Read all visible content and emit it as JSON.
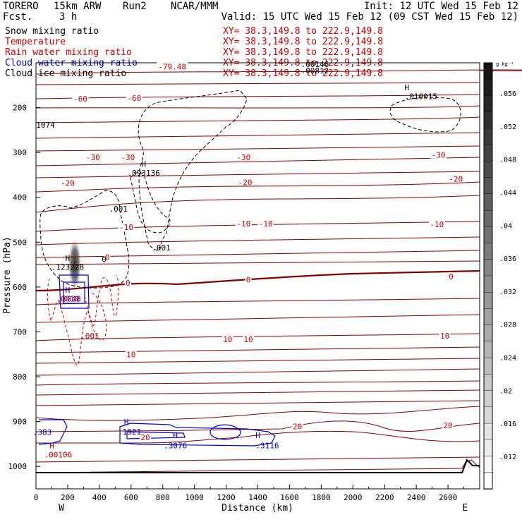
{
  "header": {
    "model": "TORERO",
    "resolution": "15km ARW",
    "run": "Run2",
    "org": "NCAR/MMM",
    "init": "Init: 12 UTC Wed 15 Feb 12",
    "fcst_label": "Fcst.",
    "fcst_value": "3 h",
    "valid": "Valid: 15 UTC Wed 15 Feb 12 (09 CST Wed 15 Feb 12)"
  },
  "legend": [
    {
      "name": "Snow mixing ratio",
      "color": "#000000",
      "xy": "XY=  38.3,149.8 to 222.9,149.8"
    },
    {
      "name": "Temperature",
      "color": "#cc0000",
      "xy": "XY=  38.3,149.8 to 222.9,149.8"
    },
    {
      "name": "Rain water mixing ratio",
      "color": "#cc0000",
      "xy": "XY=  38.3,149.8 to 222.9,149.8"
    },
    {
      "name": "Cloud water mixing ratio",
      "color": "#0000cc",
      "xy": "XY=  38.3,149.8 to 222.9,149.8"
    },
    {
      "name": "Cloud ice mixing ratio",
      "color": "#000000",
      "xy": "XY=  38.3,149.8 to 222.9,149.8"
    }
  ],
  "colorbar": {
    "unit": "g kg⁻¹",
    "ticks": [
      ".056",
      ".052",
      ".048",
      ".044",
      ".04",
      ".036",
      ".032",
      ".028",
      ".024",
      ".02",
      ".016",
      ".012"
    ]
  },
  "chart_data": {
    "type": "contour",
    "xlabel": "Distance (km)",
    "ylabel": "Pressure (hPa)",
    "xlim": [
      0,
      2800
    ],
    "ylim": [
      1050,
      100
    ],
    "x_ticks": [
      0,
      200,
      400,
      600,
      800,
      1000,
      1200,
      1400,
      1600,
      1800,
      2000,
      2200,
      2400,
      2600
    ],
    "y_ticks": [
      200,
      300,
      400,
      500,
      600,
      700,
      800,
      900,
      1000
    ],
    "endpoint_west": "W",
    "endpoint_east": "E",
    "temperature_labels": [
      {
        "text": "-79.48",
        "x": 860,
        "p": 110,
        "color": "#cc0000"
      },
      {
        "text": "-60",
        "x": 280,
        "p": 182,
        "color": "#cc0000"
      },
      {
        "text": "-60",
        "x": 620,
        "p": 180,
        "color": "#cc0000"
      },
      {
        "text": "-30",
        "x": 360,
        "p": 312,
        "color": "#cc0000"
      },
      {
        "text": "-30",
        "x": 580,
        "p": 312,
        "color": "#cc0000"
      },
      {
        "text": "-30",
        "x": 1310,
        "p": 312,
        "color": "#cc0000"
      },
      {
        "text": "-30",
        "x": 2540,
        "p": 307,
        "color": "#cc0000"
      },
      {
        "text": "-20",
        "x": 200,
        "p": 370,
        "color": "#cc0000"
      },
      {
        "text": "-20",
        "x": 1320,
        "p": 368,
        "color": "#cc0000"
      },
      {
        "text": "-20",
        "x": 2650,
        "p": 360,
        "color": "#cc0000"
      },
      {
        "text": "-10",
        "x": 570,
        "p": 468,
        "color": "#cc0000"
      },
      {
        "text": "-10",
        "x": 1310,
        "p": 460,
        "color": "#cc0000"
      },
      {
        "text": "-10",
        "x": 1450,
        "p": 460,
        "color": "#cc0000"
      },
      {
        "text": "-10",
        "x": 2530,
        "p": 462,
        "color": "#cc0000"
      },
      {
        "text": "0",
        "x": 450,
        "p": 535,
        "color": "#cc0000"
      },
      {
        "text": "0",
        "x": 580,
        "p": 592,
        "color": "#cc0000"
      },
      {
        "text": "0",
        "x": 1340,
        "p": 585,
        "color": "#cc0000"
      },
      {
        "text": "0",
        "x": 2620,
        "p": 578,
        "color": "#cc0000"
      },
      {
        "text": "10",
        "x": 1210,
        "p": 718,
        "color": "#cc0000"
      },
      {
        "text": "10",
        "x": 1340,
        "p": 718,
        "color": "#cc0000"
      },
      {
        "text": "10",
        "x": 2580,
        "p": 710,
        "color": "#cc0000"
      },
      {
        "text": "10",
        "x": 600,
        "p": 752,
        "color": "#cc0000"
      },
      {
        "text": "20",
        "x": 690,
        "p": 937,
        "color": "#cc0000"
      },
      {
        "text": "20",
        "x": 1650,
        "p": 912,
        "color": "#cc0000"
      },
      {
        "text": "20",
        "x": 2600,
        "p": 910,
        "color": "#cc0000"
      }
    ],
    "extrema_labels": [
      {
        "text": "1074",
        "x": 60,
        "p": 240,
        "color": "#000000"
      },
      {
        "text": ".093136",
        "x": 680,
        "p": 347,
        "color": "#000000",
        "marker": "H",
        "mx": 680,
        "mp": 327
      },
      {
        "text": ".001",
        "x": 520,
        "p": 427,
        "color": "#000000"
      },
      {
        "text": ".001",
        "x": 790,
        "p": 514,
        "color": "#000000"
      },
      {
        "text": ".010015",
        "x": 2430,
        "p": 176,
        "color": "#000000",
        "marker": "H",
        "mx": 2340,
        "mp": 157
      },
      {
        "text": ".00146",
        "x": 1760,
        "p": 105,
        "color": "#000000"
      },
      {
        "text": ".00812",
        "x": 1760,
        "p": 119,
        "color": "#000000"
      },
      {
        "text": ".123228",
        "x": 200,
        "p": 557,
        "color": "#000000",
        "marker": "H",
        "mx": 200,
        "mp": 537
      },
      {
        "text": "0",
        "x": 430,
        "p": 540,
        "color": "#000000"
      },
      {
        "text": ".0048",
        "x": 210,
        "p": 628,
        "color": "#0000cc",
        "marker": "H",
        "mx": 200,
        "mp": 608
      },
      {
        "text": ".0018",
        "x": 200,
        "p": 628,
        "color": "#cc0000"
      },
      {
        "text": ".001",
        "x": 340,
        "p": 710,
        "color": "#cc0000"
      },
      {
        "text": ".1921",
        "x": 590,
        "p": 924,
        "color": "#0000cc",
        "marker": "H",
        "mx": 570,
        "mp": 902
      },
      {
        "text": ".3076",
        "x": 880,
        "p": 955,
        "color": "#0000cc",
        "marker": "H",
        "mx": 880,
        "mp": 932
      },
      {
        "text": ".3116",
        "x": 1460,
        "p": 955,
        "color": "#0000cc",
        "marker": "H",
        "mx": 1400,
        "mp": 932
      },
      {
        "text": ".383",
        "x": 40,
        "p": 925,
        "color": "#0000cc"
      },
      {
        "text": ".00106",
        "x": 140,
        "p": 975,
        "color": "#cc0000",
        "marker": "H",
        "mx": 100,
        "mp": 955
      }
    ]
  }
}
